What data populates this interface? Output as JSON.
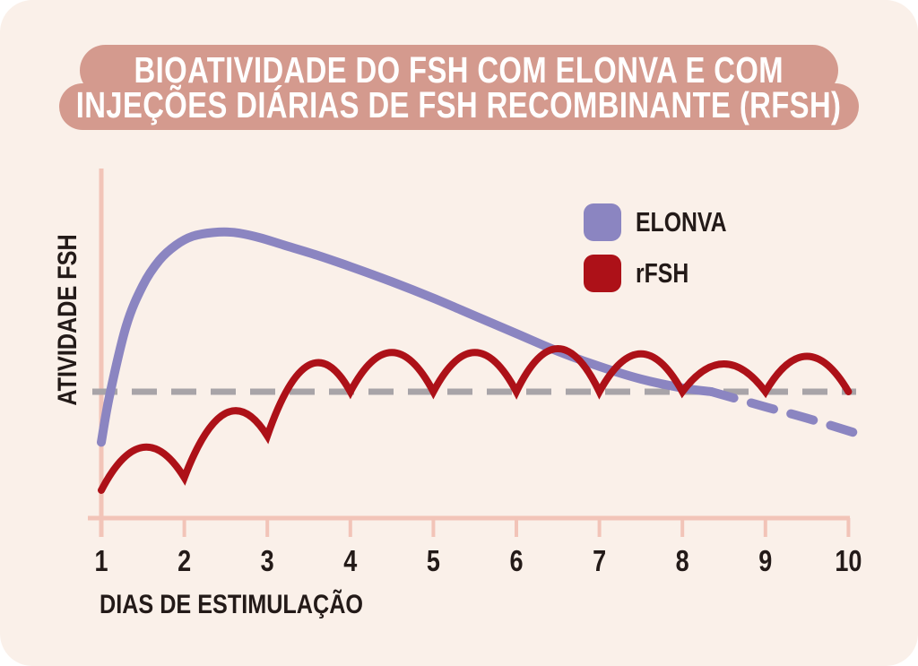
{
  "title": {
    "line1": "BIOATIVIDADE DO FSH COM ELONVA E COM",
    "line2": "INJEÇÕES DIÁRIAS DE FSH RECOMBINANTE (RFSH)"
  },
  "colors": {
    "page_background": "#ffffff",
    "card_background": "#faf0e9",
    "banner": "#d49a8e",
    "title_text": "#ffffff",
    "axis": "#f2c4b8",
    "text": "#231a18",
    "elonva": "#8b85c1",
    "rfsh": "#ad1118",
    "threshold": "#a8a4a8"
  },
  "legend": {
    "items": [
      {
        "label": "ELONVA",
        "color": "#8b85c1"
      },
      {
        "label": "rFSH",
        "color": "#ad1118"
      }
    ]
  },
  "chart_data": {
    "type": "line",
    "title": "BIOATIVIDADE DO FSH COM ELONVA E COM INJEÇÕES DIÁRIAS DE FSH RECOMBINANTE (RFSH)",
    "xlabel": "DIAS DE ESTIMULAÇÃO",
    "ylabel": "ATIVIDADE FSH",
    "xlim": [
      1,
      10
    ],
    "x_tick_labels": [
      "1",
      "2",
      "3",
      "4",
      "5",
      "6",
      "7",
      "8",
      "9",
      "10"
    ],
    "y_axis_ticks": "none (unlabeled activity scale)",
    "grid": false,
    "legend_position": "upper right",
    "threshold": {
      "value": 1.0,
      "style": "dashed",
      "color": "#a8a4a8"
    },
    "series": [
      {
        "name": "ELONVA",
        "color": "#8b85c1",
        "style": "smooth, solid until ~day 8.3 then dashed",
        "solid_points": [
          [
            1,
            0.6
          ],
          [
            1.1,
            0.97
          ],
          [
            1.3,
            1.52
          ],
          [
            1.5,
            1.84
          ],
          [
            1.7,
            2.04
          ],
          [
            1.9,
            2.16
          ],
          [
            2.1,
            2.23
          ],
          [
            2.35,
            2.26
          ],
          [
            2.6,
            2.26
          ],
          [
            2.9,
            2.22
          ],
          [
            3.2,
            2.16
          ],
          [
            3.6,
            2.08
          ],
          [
            4,
            1.99
          ],
          [
            4.5,
            1.87
          ],
          [
            5,
            1.74
          ],
          [
            5.5,
            1.6
          ],
          [
            6,
            1.46
          ],
          [
            6.5,
            1.32
          ],
          [
            7,
            1.2
          ],
          [
            7.5,
            1.1
          ],
          [
            8,
            1.03
          ],
          [
            8.35,
            1.0
          ]
        ],
        "dashed_points": [
          [
            8.35,
            1.0
          ],
          [
            9,
            0.88
          ],
          [
            9.5,
            0.79
          ],
          [
            10.1,
            0.67
          ]
        ]
      },
      {
        "name": "rFSH",
        "color": "#ad1118",
        "style": "daily scalloped arches with cusps at each injection day",
        "cusp_days": [
          1,
          2,
          3,
          4,
          5,
          6,
          7,
          8,
          9,
          10
        ],
        "cusp_values": [
          0.22,
          0.32,
          0.65,
          1.0,
          1.0,
          1.0,
          1.0,
          1.0,
          1.0,
          1.0
        ],
        "peak_days": [
          1.5,
          2.5,
          3.5,
          4.5,
          5.5,
          6.5,
          7.5,
          8.5,
          9.5
        ],
        "peak_values": [
          0.56,
          0.83,
          1.21,
          1.31,
          1.31,
          1.34,
          1.3,
          1.22,
          1.28
        ]
      }
    ]
  }
}
